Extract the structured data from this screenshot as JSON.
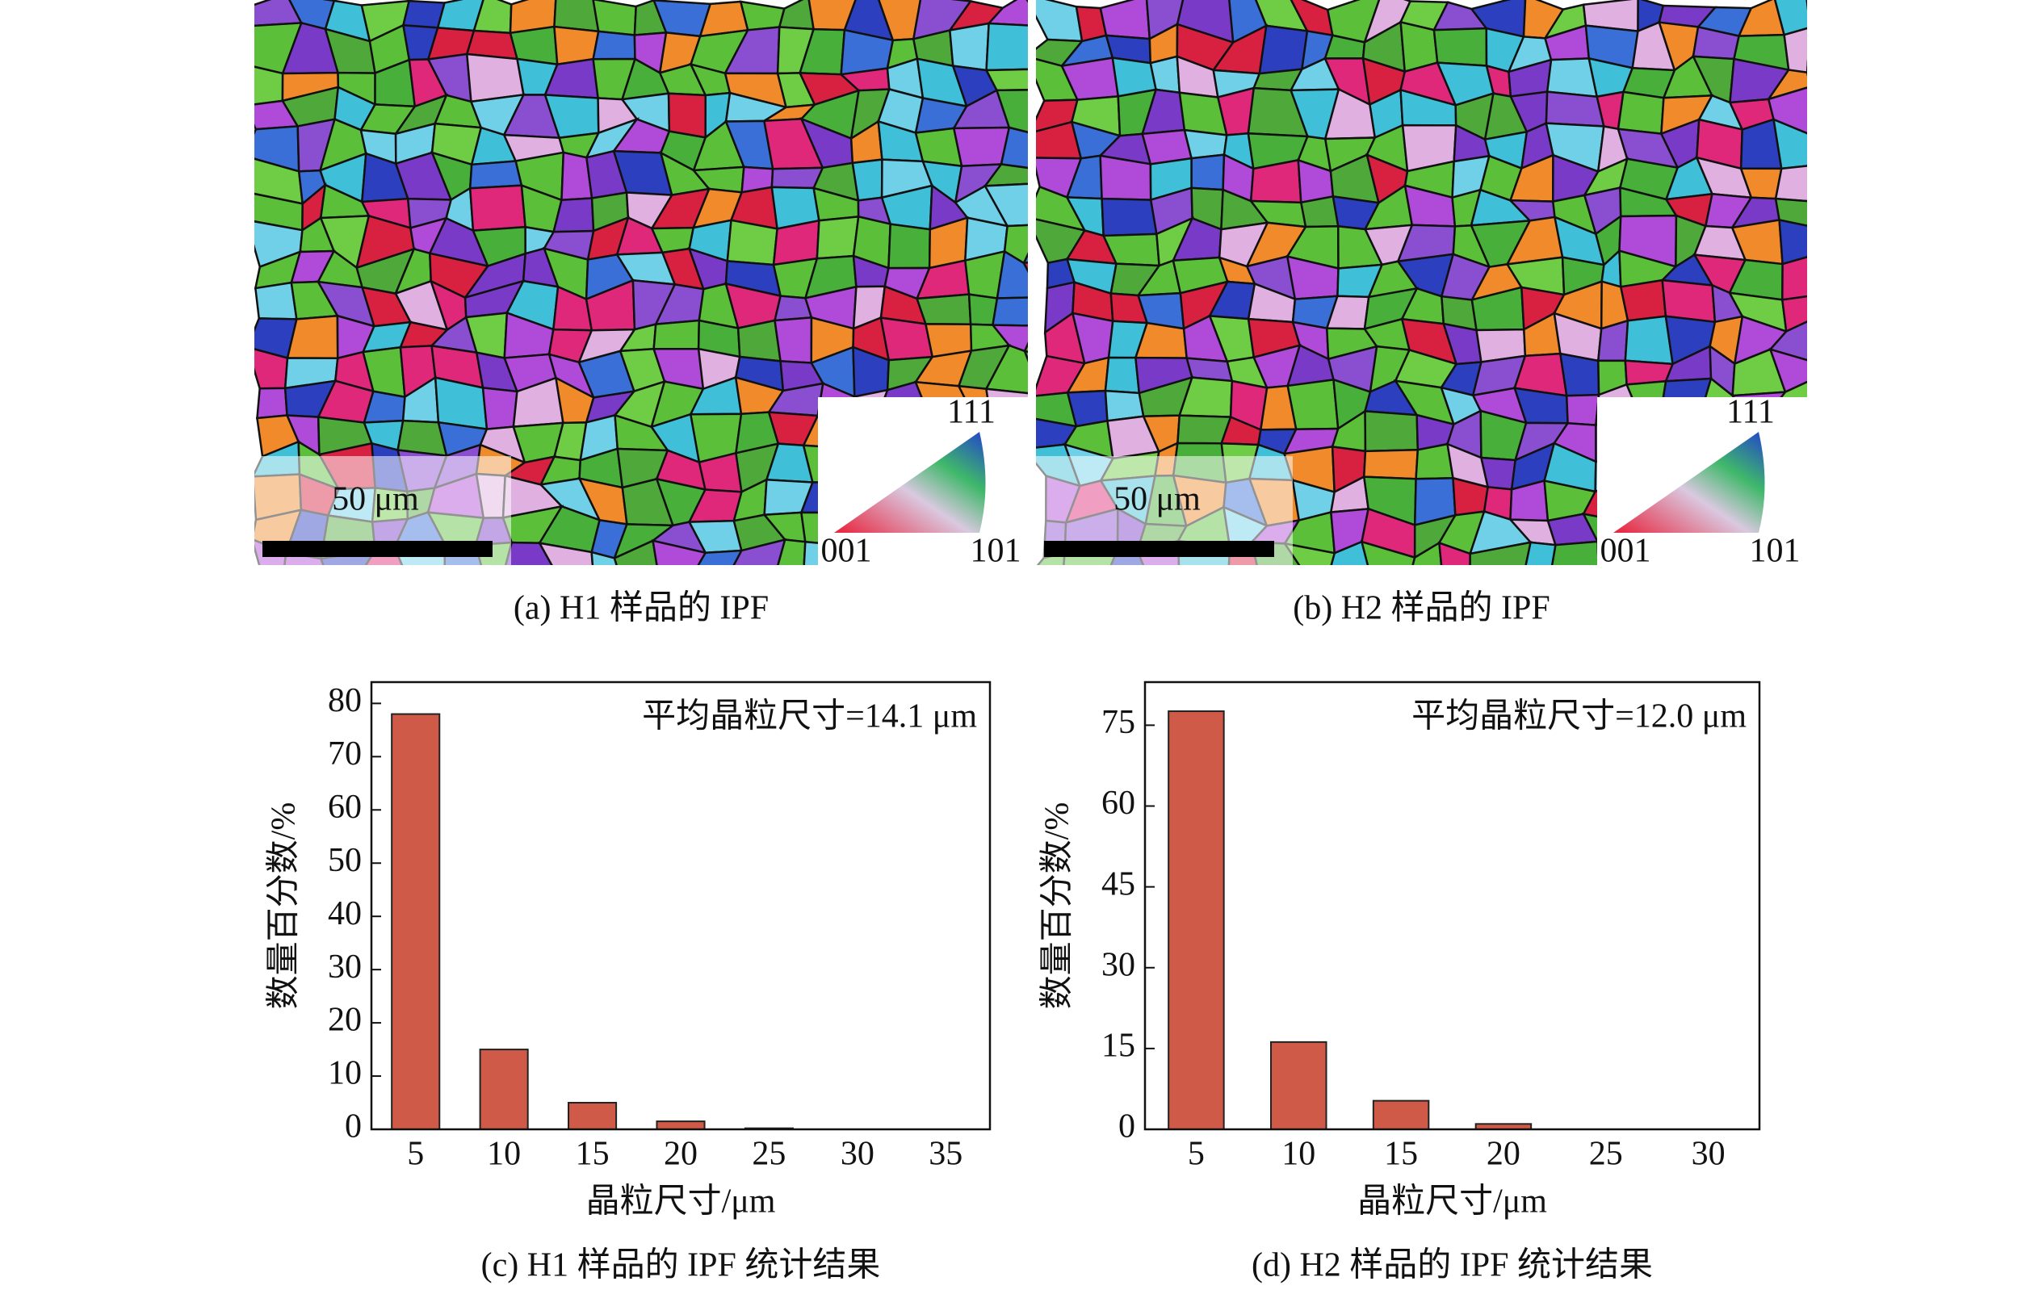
{
  "ipf_panels": [
    {
      "caption": "(a) H1 样品的 IPF",
      "scale_bar": "50 μm",
      "legend": [
        "111",
        "001",
        "101"
      ]
    },
    {
      "caption": "(b) H2 样品的 IPF",
      "scale_bar": "50 μm",
      "legend": [
        "111",
        "001",
        "101"
      ]
    }
  ],
  "chart_data": [
    {
      "type": "bar",
      "caption": "(c) H1 样品的 IPF 统计结果",
      "annotation": "平均晶粒尺寸=14.1 μm",
      "x_label": "晶粒尺寸/μm",
      "y_label": "数量百分数/%",
      "categories": [
        "5",
        "10",
        "15",
        "20",
        "25",
        "30",
        "35"
      ],
      "values": [
        78,
        15,
        5,
        1.5,
        0.2,
        0,
        0
      ],
      "color": "#cf5a48",
      "ylim": [
        0,
        84
      ],
      "yticks": [
        0,
        10,
        20,
        30,
        40,
        50,
        60,
        70,
        80
      ]
    },
    {
      "type": "bar",
      "caption": "(d) H2 样品的 IPF 统计结果",
      "annotation": "平均晶粒尺寸=12.0 μm",
      "x_label": "晶粒尺寸/μm",
      "y_label": "数量百分数/%",
      "categories": [
        "5",
        "10",
        "15",
        "20",
        "25",
        "30"
      ],
      "values": [
        77.6,
        16.2,
        5.3,
        1,
        0,
        0
      ],
      "color": "#cf5a48",
      "ylim": [
        0,
        83
      ],
      "yticks": [
        0,
        15,
        30,
        45,
        60,
        75
      ]
    }
  ]
}
